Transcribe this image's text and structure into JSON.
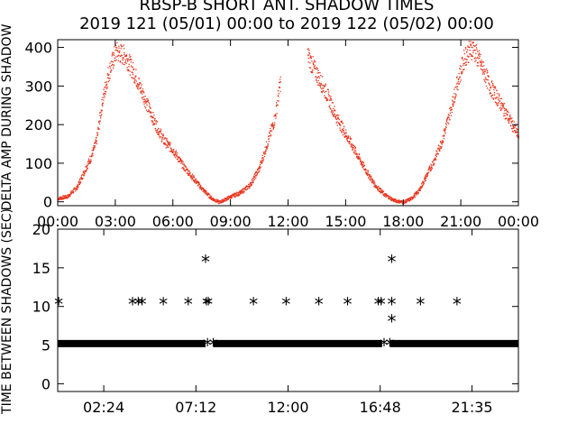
{
  "title_line1": "RBSP-B SHORT ANT. SHADOW TIMES",
  "title_line2": "2019 121 (05/01) 00:00 to 2019 122 (05/02) 00:00",
  "chart_data": [
    {
      "type": "scatter",
      "ylabel": "DELTA AMP DURING SHADOW",
      "xlim": [
        0,
        24
      ],
      "ylim": [
        -10,
        420
      ],
      "yticks": [
        "0",
        "100",
        "200",
        "300",
        "400"
      ],
      "ytick_values": [
        0,
        100,
        200,
        300,
        400
      ],
      "xticks": [
        "00:00",
        "03:00",
        "06:00",
        "09:00",
        "12:00",
        "15:00",
        "18:00",
        "21:00",
        "00:00"
      ],
      "xtick_values": [
        0,
        3,
        6,
        9,
        12,
        15,
        18,
        21,
        24
      ],
      "color": "#e8341c",
      "series_envelope": [
        {
          "x": 0.0,
          "y": 10
        },
        {
          "x": 0.5,
          "y": 15
        },
        {
          "x": 1.0,
          "y": 40
        },
        {
          "x": 1.5,
          "y": 95
        },
        {
          "x": 1.7,
          "y": 115
        },
        {
          "x": 2.0,
          "y": 160
        },
        {
          "x": 2.3,
          "y": 260
        },
        {
          "x": 2.6,
          "y": 330
        },
        {
          "x": 3.0,
          "y": 390
        },
        {
          "x": 3.5,
          "y": 380
        },
        {
          "x": 4.0,
          "y": 330
        },
        {
          "x": 4.5,
          "y": 270
        },
        {
          "x": 5.0,
          "y": 210
        },
        {
          "x": 5.5,
          "y": 160
        },
        {
          "x": 6.0,
          "y": 135
        },
        {
          "x": 6.5,
          "y": 95
        },
        {
          "x": 7.0,
          "y": 65
        },
        {
          "x": 7.5,
          "y": 35
        },
        {
          "x": 8.0,
          "y": 10
        },
        {
          "x": 8.4,
          "y": 0
        },
        {
          "x": 8.6,
          "y": 5
        },
        {
          "x": 9.0,
          "y": 15
        },
        {
          "x": 9.5,
          "y": 25
        },
        {
          "x": 10.0,
          "y": 45
        },
        {
          "x": 10.5,
          "y": 90
        },
        {
          "x": 11.0,
          "y": 170
        },
        {
          "x": 11.3,
          "y": 220
        },
        {
          "x": 11.6,
          "y": 320
        },
        {
          "x": 13.0,
          "y": 380
        },
        {
          "x": 13.5,
          "y": 330
        },
        {
          "x": 14.0,
          "y": 280
        },
        {
          "x": 14.5,
          "y": 220
        },
        {
          "x": 15.0,
          "y": 175
        },
        {
          "x": 15.5,
          "y": 130
        },
        {
          "x": 16.0,
          "y": 85
        },
        {
          "x": 16.5,
          "y": 45
        },
        {
          "x": 17.0,
          "y": 20
        },
        {
          "x": 17.5,
          "y": 5
        },
        {
          "x": 18.0,
          "y": 0
        },
        {
          "x": 18.4,
          "y": 10
        },
        {
          "x": 18.8,
          "y": 30
        },
        {
          "x": 19.2,
          "y": 70
        },
        {
          "x": 19.6,
          "y": 110
        },
        {
          "x": 20.0,
          "y": 160
        },
        {
          "x": 20.4,
          "y": 230
        },
        {
          "x": 20.8,
          "y": 310
        },
        {
          "x": 21.2,
          "y": 380
        },
        {
          "x": 21.6,
          "y": 400
        },
        {
          "x": 22.0,
          "y": 360
        },
        {
          "x": 22.5,
          "y": 300
        },
        {
          "x": 23.0,
          "y": 260
        },
        {
          "x": 23.5,
          "y": 215
        },
        {
          "x": 24.0,
          "y": 170
        }
      ]
    },
    {
      "type": "scatter",
      "ylabel": "TIME BETWEEN SHADOWS (SEC)",
      "xlim": [
        0,
        24
      ],
      "ylim": [
        -1,
        20
      ],
      "yticks": [
        "0",
        "5",
        "10",
        "15",
        "20"
      ],
      "ytick_values": [
        0,
        5,
        10,
        15,
        20
      ],
      "xticks": [
        "02:24",
        "07:12",
        "12:00",
        "16:48",
        "21:35"
      ],
      "xtick_values": [
        2.4,
        7.2,
        12.0,
        16.8,
        21.5833
      ],
      "marker": "*",
      "color": "#000000",
      "baseline_segments": [
        {
          "x_start": 0.0,
          "x_end": 7.7,
          "y": 5.2
        },
        {
          "x_start": 8.1,
          "x_end": 16.9,
          "y": 5.2
        },
        {
          "x_start": 17.3,
          "x_end": 24.0,
          "y": 5.2
        }
      ],
      "outliers": [
        {
          "x": 0.05,
          "y": 10.5
        },
        {
          "x": 3.9,
          "y": 10.5
        },
        {
          "x": 4.2,
          "y": 10.5
        },
        {
          "x": 4.4,
          "y": 10.5
        },
        {
          "x": 5.5,
          "y": 10.5
        },
        {
          "x": 6.8,
          "y": 10.5
        },
        {
          "x": 7.7,
          "y": 16.0
        },
        {
          "x": 7.75,
          "y": 10.5
        },
        {
          "x": 7.85,
          "y": 10.5
        },
        {
          "x": 7.8,
          "y": 5.2
        },
        {
          "x": 8.1,
          "y": 5.2
        },
        {
          "x": 10.2,
          "y": 10.5
        },
        {
          "x": 11.9,
          "y": 10.5
        },
        {
          "x": 13.6,
          "y": 10.5
        },
        {
          "x": 15.1,
          "y": 10.5
        },
        {
          "x": 16.7,
          "y": 10.5
        },
        {
          "x": 16.85,
          "y": 10.5
        },
        {
          "x": 17.0,
          "y": 5.2
        },
        {
          "x": 17.3,
          "y": 5.2
        },
        {
          "x": 17.4,
          "y": 16.0
        },
        {
          "x": 17.4,
          "y": 10.5
        },
        {
          "x": 17.4,
          "y": 8.3
        },
        {
          "x": 18.9,
          "y": 10.5
        },
        {
          "x": 20.8,
          "y": 10.5
        }
      ]
    }
  ]
}
